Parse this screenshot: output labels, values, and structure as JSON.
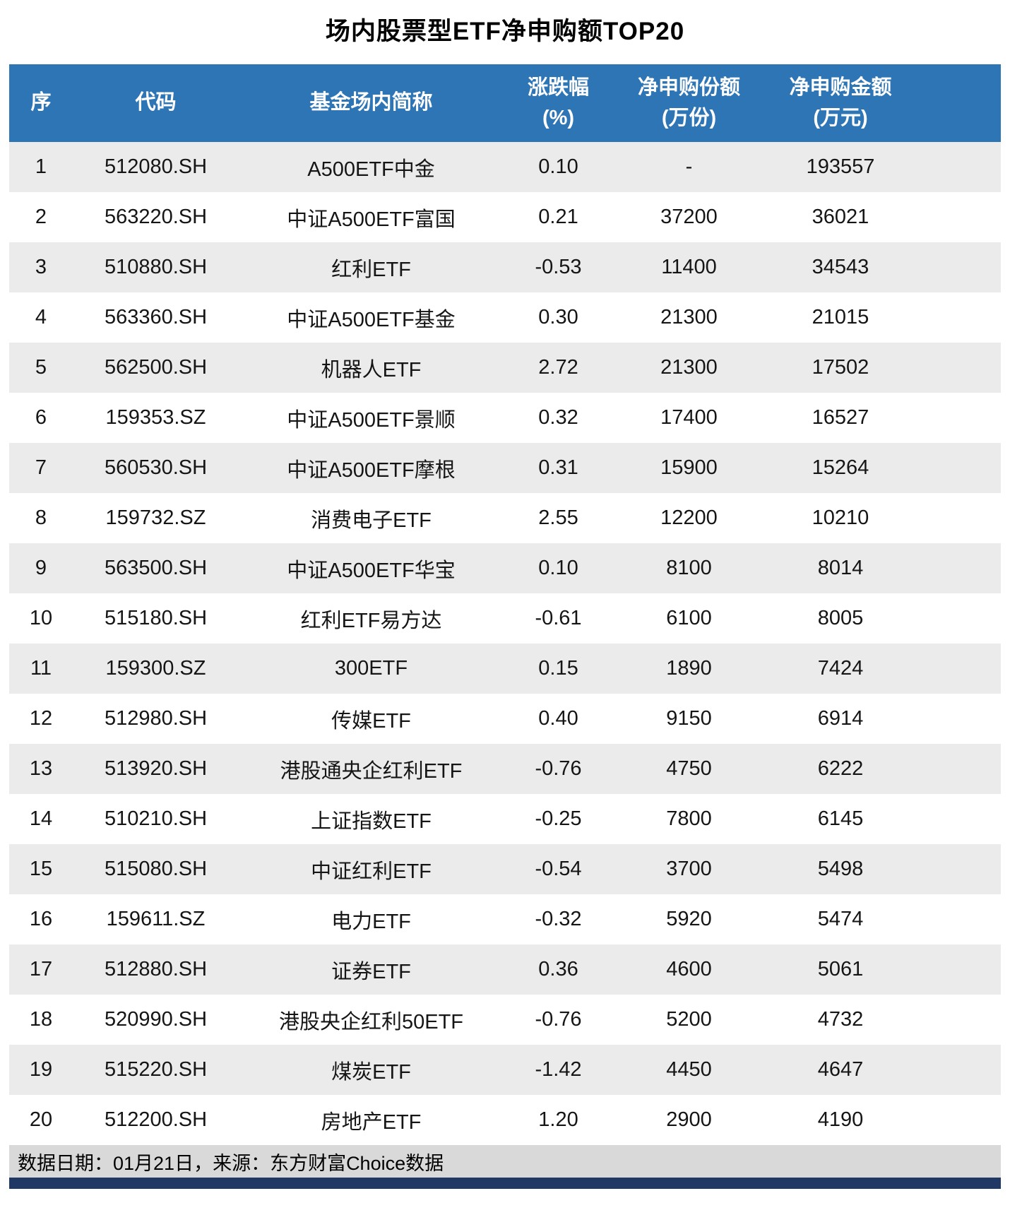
{
  "title": "场内股票型ETF净申购额TOP20",
  "table": {
    "column_keys": [
      "rank",
      "code",
      "name",
      "change_pct",
      "net_shares",
      "net_amount"
    ],
    "headers": [
      {
        "line1": "序",
        "line2": ""
      },
      {
        "line1": "代码",
        "line2": ""
      },
      {
        "line1": "基金场内简称",
        "line2": ""
      },
      {
        "line1": "涨跌幅",
        "line2": "(%)"
      },
      {
        "line1": "净申购份额",
        "line2": "(万份)"
      },
      {
        "line1": "净申购金额",
        "line2": "(万元)"
      }
    ],
    "rows": [
      [
        "1",
        "512080.SH",
        "A500ETF中金",
        "0.10",
        "-",
        "193557"
      ],
      [
        "2",
        "563220.SH",
        "中证A500ETF富国",
        "0.21",
        "37200",
        "36021"
      ],
      [
        "3",
        "510880.SH",
        "红利ETF",
        "-0.53",
        "11400",
        "34543"
      ],
      [
        "4",
        "563360.SH",
        "中证A500ETF基金",
        "0.30",
        "21300",
        "21015"
      ],
      [
        "5",
        "562500.SH",
        "机器人ETF",
        "2.72",
        "21300",
        "17502"
      ],
      [
        "6",
        "159353.SZ",
        "中证A500ETF景顺",
        "0.32",
        "17400",
        "16527"
      ],
      [
        "7",
        "560530.SH",
        "中证A500ETF摩根",
        "0.31",
        "15900",
        "15264"
      ],
      [
        "8",
        "159732.SZ",
        "消费电子ETF",
        "2.55",
        "12200",
        "10210"
      ],
      [
        "9",
        "563500.SH",
        "中证A500ETF华宝",
        "0.10",
        "8100",
        "8014"
      ],
      [
        "10",
        "515180.SH",
        "红利ETF易方达",
        "-0.61",
        "6100",
        "8005"
      ],
      [
        "11",
        "159300.SZ",
        "300ETF",
        "0.15",
        "1890",
        "7424"
      ],
      [
        "12",
        "512980.SH",
        "传媒ETF",
        "0.40",
        "9150",
        "6914"
      ],
      [
        "13",
        "513920.SH",
        "港股通央企红利ETF",
        "-0.76",
        "4750",
        "6222"
      ],
      [
        "14",
        "510210.SH",
        "上证指数ETF",
        "-0.25",
        "7800",
        "6145"
      ],
      [
        "15",
        "515080.SH",
        "中证红利ETF",
        "-0.54",
        "3700",
        "5498"
      ],
      [
        "16",
        "159611.SZ",
        "电力ETF",
        "-0.32",
        "5920",
        "5474"
      ],
      [
        "17",
        "512880.SH",
        "证券ETF",
        "0.36",
        "4600",
        "5061"
      ],
      [
        "18",
        "520990.SH",
        "港股央企红利50ETF",
        "-0.76",
        "5200",
        "4732"
      ],
      [
        "19",
        "515220.SH",
        "煤炭ETF",
        "-1.42",
        "4450",
        "4647"
      ],
      [
        "20",
        "512200.SH",
        "房地产ETF",
        "1.20",
        "2900",
        "4190"
      ]
    ]
  },
  "footer_note": "数据日期：01月21日，来源：东方财富Choice数据",
  "colors": {
    "header_bg": "#2E75B6",
    "row_alt_bg": "#EBEBEB",
    "footer_bg": "#D9D9D9",
    "bottom_bar": "#1F3864"
  },
  "chart_data": {
    "type": "table",
    "title": "场内股票型ETF净申购额TOP20",
    "columns": [
      "序",
      "代码",
      "基金场内简称",
      "涨跌幅(%)",
      "净申购份额(万份)",
      "净申购金额(万元)"
    ],
    "rows": [
      [
        1,
        "512080.SH",
        "A500ETF中金",
        0.1,
        null,
        193557
      ],
      [
        2,
        "563220.SH",
        "中证A500ETF富国",
        0.21,
        37200,
        36021
      ],
      [
        3,
        "510880.SH",
        "红利ETF",
        -0.53,
        11400,
        34543
      ],
      [
        4,
        "563360.SH",
        "中证A500ETF基金",
        0.3,
        21300,
        21015
      ],
      [
        5,
        "562500.SH",
        "机器人ETF",
        2.72,
        21300,
        17502
      ],
      [
        6,
        "159353.SZ",
        "中证A500ETF景顺",
        0.32,
        17400,
        16527
      ],
      [
        7,
        "560530.SH",
        "中证A500ETF摩根",
        0.31,
        15900,
        15264
      ],
      [
        8,
        "159732.SZ",
        "消费电子ETF",
        2.55,
        12200,
        10210
      ],
      [
        9,
        "563500.SH",
        "中证A500ETF华宝",
        0.1,
        8100,
        8014
      ],
      [
        10,
        "515180.SH",
        "红利ETF易方达",
        -0.61,
        6100,
        8005
      ],
      [
        11,
        "159300.SZ",
        "300ETF",
        0.15,
        1890,
        7424
      ],
      [
        12,
        "512980.SH",
        "传媒ETF",
        0.4,
        9150,
        6914
      ],
      [
        13,
        "513920.SH",
        "港股通央企红利ETF",
        -0.76,
        4750,
        6222
      ],
      [
        14,
        "510210.SH",
        "上证指数ETF",
        -0.25,
        7800,
        6145
      ],
      [
        15,
        "515080.SH",
        "中证红利ETF",
        -0.54,
        3700,
        5498
      ],
      [
        16,
        "159611.SZ",
        "电力ETF",
        -0.32,
        5920,
        5474
      ],
      [
        17,
        "512880.SH",
        "证券ETF",
        0.36,
        4600,
        5061
      ],
      [
        18,
        "520990.SH",
        "港股央企红利50ETF",
        -0.76,
        5200,
        4732
      ],
      [
        19,
        "515220.SH",
        "煤炭ETF",
        -1.42,
        4450,
        4647
      ],
      [
        20,
        "512200.SH",
        "房地产ETF",
        1.2,
        2900,
        4190
      ]
    ],
    "footnote": "数据日期：01月21日，来源：东方财富Choice数据"
  }
}
